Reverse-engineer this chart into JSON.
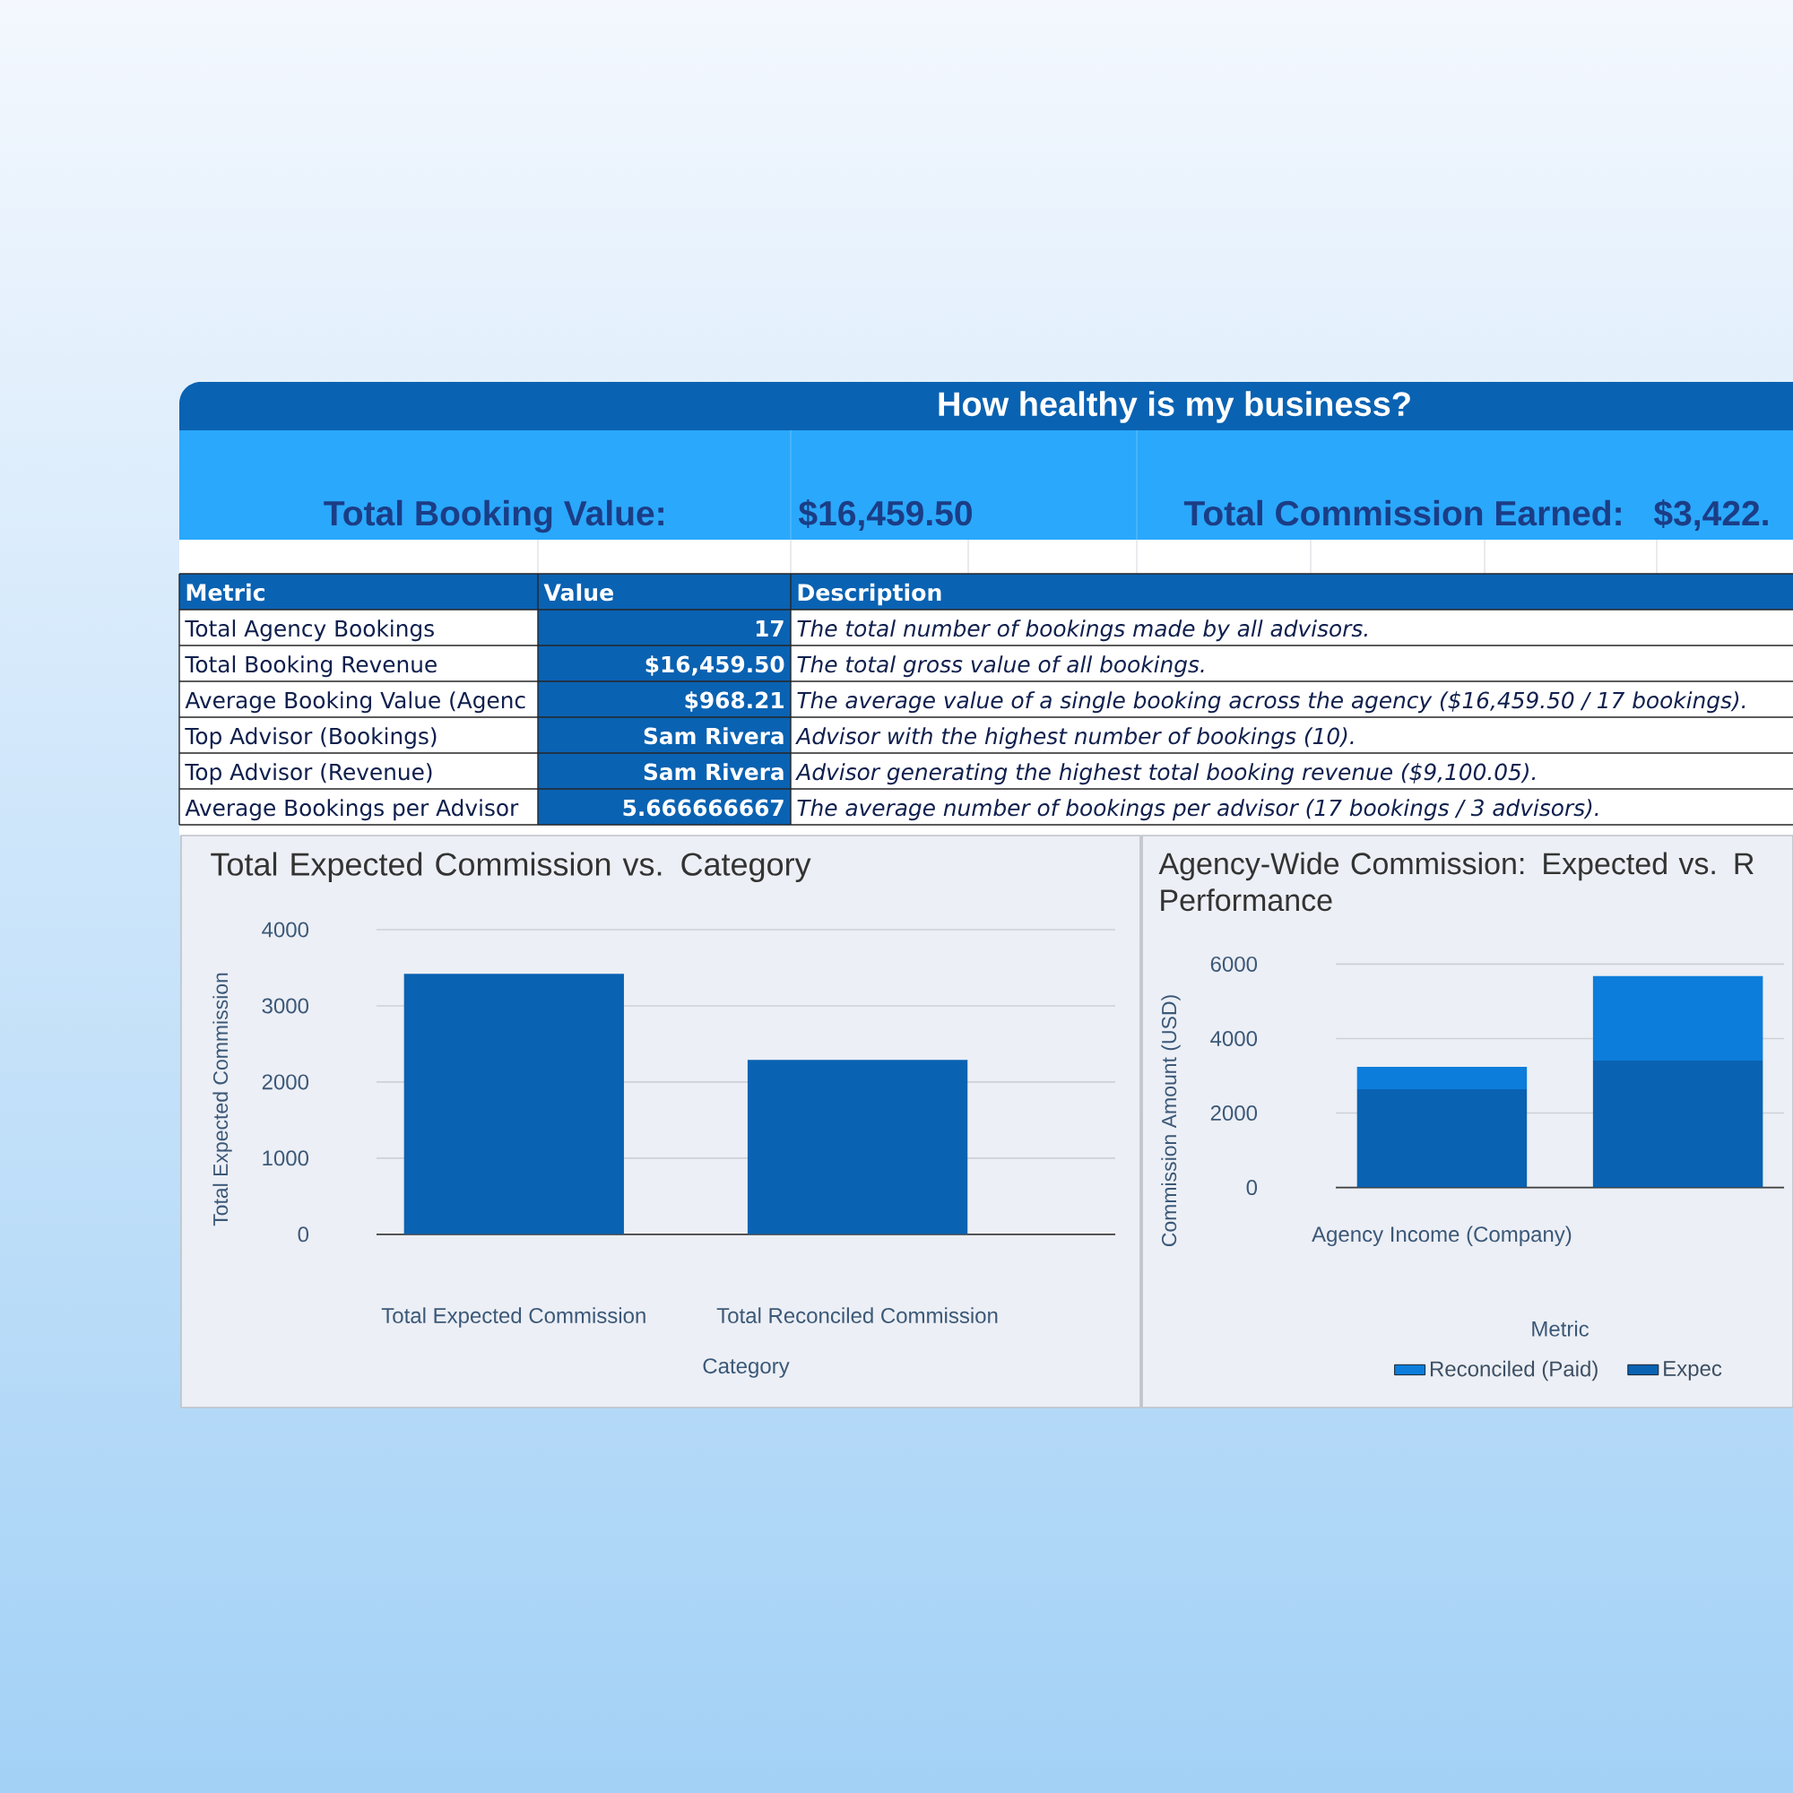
{
  "chart_data": [
    {
      "type": "other",
      "title": "How healthy is my business?",
      "annotations": [
        "Total Booking Value:",
        "$16,459.50",
        "Total Commission Earned:",
        "$3,422.",
        "Metric",
        "Value",
        "Description",
        "Total Agency Bookings",
        "17",
        "The total number of bookings made by all advisors.",
        "Total Booking Revenue",
        "$16,459.50",
        "The total gross value of all bookings.",
        "Average Booking Value (Agenc",
        "$968.21",
        "The average value of a single booking across the agency ($16,459.50 / 17 bookings).",
        "Top Advisor (Bookings)",
        "Sam Rivera",
        "Advisor with the highest number of bookings (10).",
        "Top Advisor (Revenue)",
        "Sam Rivera",
        "Advisor generating the highest total booking revenue ($9,100.05).",
        "Average Bookings per Advisor",
        "5.666666667",
        "The average number of bookings per advisor (17 bookings / 3 advisors)."
      ]
    },
    {
      "type": "bar",
      "title": "Total Expected Commission vs. Category",
      "xlabel": "Category",
      "ylabel": "Total Expected Commission",
      "categories": [
        "Total Expected Commission",
        "Total Reconciled Commission"
      ],
      "values": [
        3420,
        2290
      ],
      "color": "#0a62b2",
      "ylim": [
        0,
        4000
      ],
      "yticks": [
        0,
        1000,
        2000,
        3000,
        4000
      ],
      "grid": "y"
    },
    {
      "type": "bar",
      "title": "Agency-Wide Commission: Expected vs. R Performance",
      "xlabel": "Metric",
      "ylabel": "Commission Amount (USD)",
      "categories": [
        "Agency Income (Company)",
        null
      ],
      "stacked": true,
      "series": [
        {
          "name": "Expec",
          "color": "#0a62b2",
          "values": [
            2640,
            3410
          ]
        },
        {
          "name": "Reconciled (Paid)",
          "color": "#0c7ddb",
          "values": [
            600,
            2270
          ]
        }
      ],
      "ylim": [
        0,
        6000
      ],
      "yticks": [
        0,
        2000,
        4000,
        6000
      ],
      "grid": "y",
      "legend": "bottom"
    }
  ]
}
